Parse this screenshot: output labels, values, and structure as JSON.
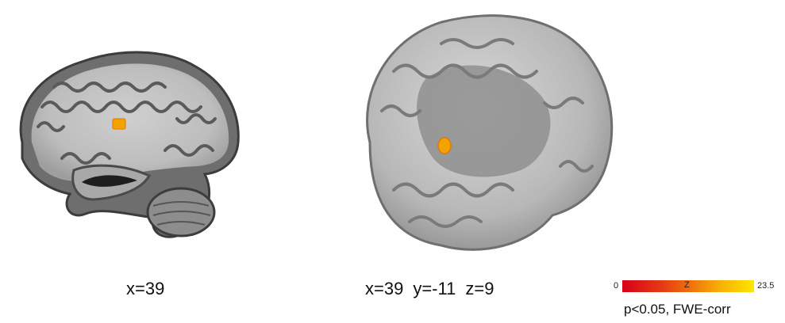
{
  "panels": {
    "sagittal": {
      "view": "sagittal slice",
      "coordinate_label": "x=39"
    },
    "render": {
      "view": "3D surface rendering",
      "coord_x": "x=39",
      "coord_y": "y=-11",
      "coord_z": "z=9"
    }
  },
  "colorbar": {
    "min_label": "0",
    "mid_label": "Z",
    "max_label": "23.5",
    "colors": [
      "#d8001a",
      "#f07a0c",
      "#ffe600"
    ]
  },
  "caption": "p<0.05, FWE-corr",
  "colors": {
    "cortex_gray": "#8a8a8a",
    "white_matter": "#c4c4c4",
    "surface": "#b9b9b9",
    "activation": "#f3a300"
  }
}
